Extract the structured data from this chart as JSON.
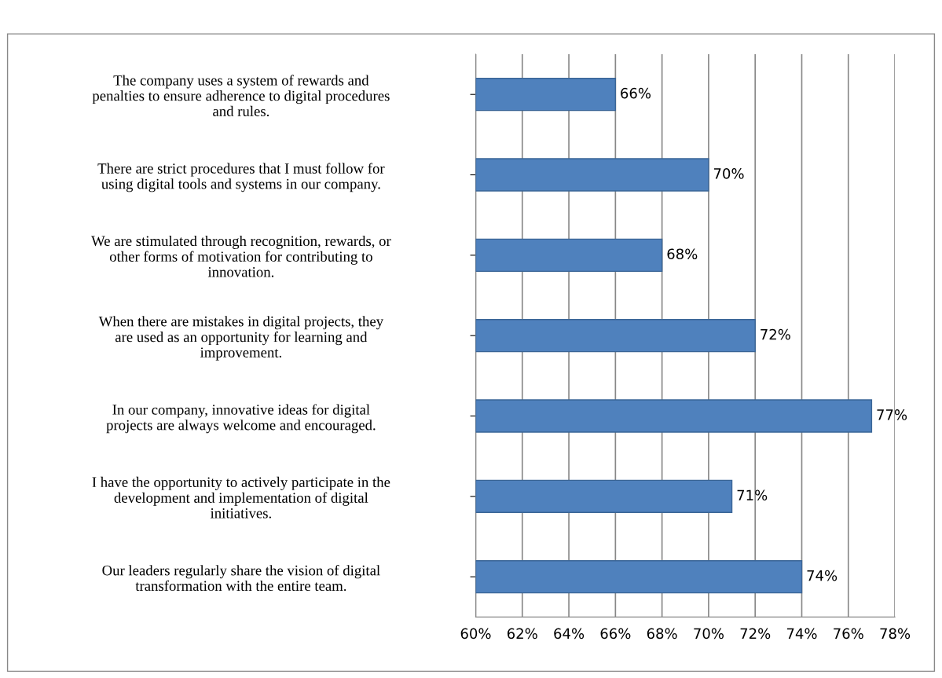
{
  "chart_data": {
    "type": "bar",
    "orientation": "horizontal",
    "categories": [
      "The company uses a system of rewards and\npenalties to ensure adherence to digital procedures\nand rules.",
      "There are strict procedures that I must follow for\nusing digital tools and systems in our company.",
      "We are stimulated through recognition, rewards, or\nother forms of motivation for contributing to\ninnovation.",
      "When there are mistakes in digital projects, they\nare used as an opportunity for learning and\nimprovement.",
      "In our company, innovative ideas for digital\nprojects are always welcome and encouraged.",
      "I have the opportunity to actively participate in the\ndevelopment and implementation of digital\ninitiatives.",
      "Our leaders regularly share the vision of digital\ntransformation with the entire team."
    ],
    "values": [
      66,
      70,
      68,
      72,
      77,
      71,
      74
    ],
    "value_labels": [
      "66%",
      "70%",
      "68%",
      "72%",
      "77%",
      "71%",
      "74%"
    ],
    "color": "#4f81bd",
    "xlim": [
      60,
      78
    ],
    "xticks": [
      {
        "value": 60,
        "label": "60%"
      },
      {
        "value": 62,
        "label": "62%"
      },
      {
        "value": 64,
        "label": "64%"
      },
      {
        "value": 66,
        "label": "66%"
      },
      {
        "value": 68,
        "label": "68%"
      },
      {
        "value": 70,
        "label": "70%"
      },
      {
        "value": 72,
        "label": "72%"
      },
      {
        "value": 74,
        "label": "74%"
      },
      {
        "value": 76,
        "label": "76%"
      },
      {
        "value": 78,
        "label": "78%"
      }
    ],
    "grid": "x",
    "legend": false
  }
}
